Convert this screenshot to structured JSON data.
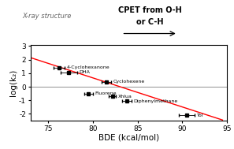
{
  "chart_data": {
    "type": "scatter",
    "xlabel": "BDE (kcal/mol)",
    "ylabel": "log(k₂)",
    "xlim": [
      73,
      95
    ],
    "xticks": [
      75,
      80,
      85,
      90,
      95
    ],
    "ylim": [
      -2.5,
      3.1
    ],
    "yticks": [
      -2,
      -1,
      0,
      1,
      2,
      3
    ],
    "hline": 0.0,
    "series": [
      {
        "type": "scatter",
        "color": "black",
        "marker": "square",
        "x": [
          76.2,
          77.3,
          81.5,
          79.5,
          82.2,
          83.8,
          90.5
        ],
        "values": [
          1.4,
          1.05,
          0.38,
          -0.5,
          -0.7,
          -1.05,
          -2.1
        ],
        "xerr": [
          0.6,
          0.9,
          0.5,
          0.5,
          0.4,
          0.5,
          0.9
        ],
        "labels": [
          "4-Cyclohexanone",
          "DHA",
          "Cyclohexene",
          "Fluorene",
          "Xhlua",
          "Diphenylmethane",
          "Tol"
        ]
      },
      {
        "type": "line",
        "color": "#ff0000",
        "x": [
          73.0,
          94.5
        ],
        "values": [
          2.15,
          -2.45
        ]
      }
    ],
    "annotations": [
      "CPET from O-H",
      "or C-H",
      "X-ray structure"
    ]
  }
}
